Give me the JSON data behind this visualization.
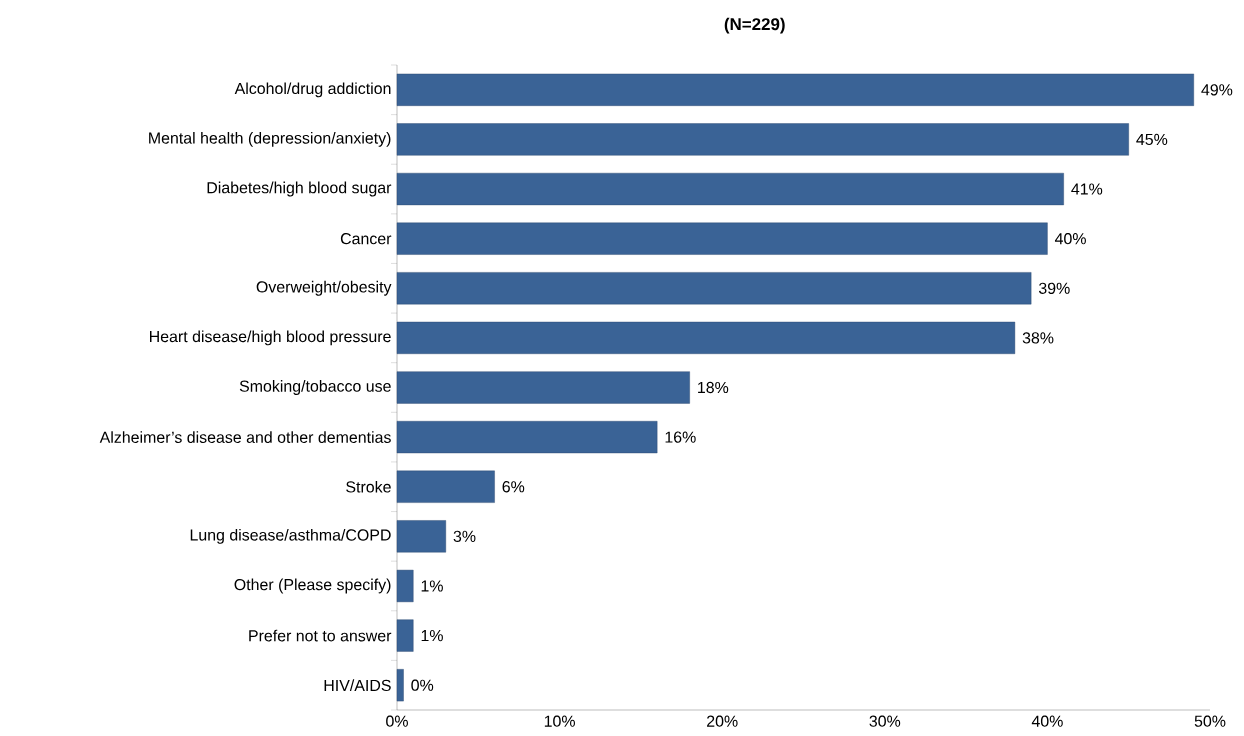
{
  "chart_data": {
    "type": "bar",
    "orientation": "horizontal",
    "title": "(N=229)",
    "categories": [
      "Alcohol/drug addiction",
      "Mental health (depression/anxiety)",
      "Diabetes/high blood sugar",
      "Cancer",
      "Overweight/obesity",
      "Heart disease/high blood pressure",
      "Smoking/tobacco use",
      "Alzheimer’s disease and other dementias",
      "Stroke",
      "Lung disease/asthma/COPD",
      "Other (Please specify)",
      "Prefer not to answer",
      "HIV/AIDS"
    ],
    "values": [
      49,
      45,
      41,
      40,
      39,
      38,
      18,
      16,
      6,
      3,
      1,
      1,
      0.4
    ],
    "value_labels": [
      "49%",
      "45%",
      "41%",
      "40%",
      "39%",
      "38%",
      "18%",
      "16%",
      "6%",
      "3%",
      "1%",
      "1%",
      "0%"
    ],
    "color": "#3a6396",
    "xlim": [
      0,
      50
    ],
    "xticks": [
      {
        "value": 0,
        "label": "0%"
      },
      {
        "value": 10,
        "label": "10%"
      },
      {
        "value": 20,
        "label": "20%"
      },
      {
        "value": 30,
        "label": "30%"
      },
      {
        "value": 40,
        "label": "40%"
      },
      {
        "value": 50,
        "label": "50%"
      }
    ],
    "grid": false
  }
}
